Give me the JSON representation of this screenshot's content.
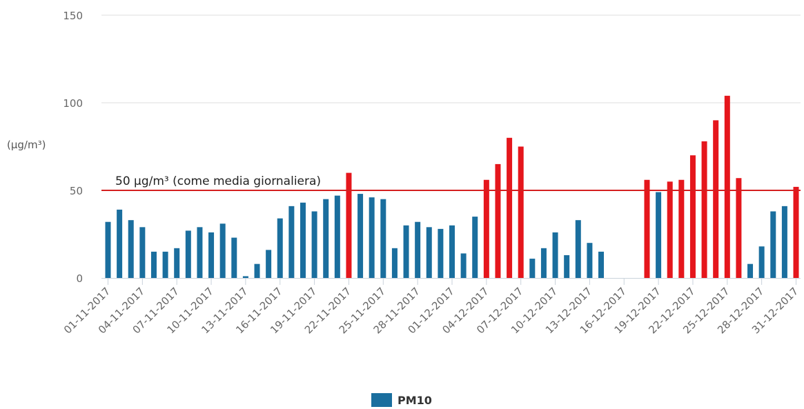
{
  "chart_data": {
    "type": "bar",
    "ylabel": "(µg/m³)",
    "ylim": [
      0,
      150
    ],
    "yticks": [
      0,
      50,
      100,
      150
    ],
    "grid": true,
    "legend": {
      "position": "bottom",
      "label": "PM10"
    },
    "reference_line": {
      "value": 50,
      "label": "50 µg/m³ (come media giornaliera)"
    },
    "colors": {
      "normal": "#1a6e9e",
      "exceed": "#e5161c",
      "refline": "#d41f1f",
      "grid": "#dddddd"
    },
    "categories": [
      "01-11-2017",
      "02-11-2017",
      "03-11-2017",
      "04-11-2017",
      "05-11-2017",
      "06-11-2017",
      "07-11-2017",
      "08-11-2017",
      "09-11-2017",
      "10-11-2017",
      "11-11-2017",
      "12-11-2017",
      "13-11-2017",
      "14-11-2017",
      "15-11-2017",
      "16-11-2017",
      "17-11-2017",
      "18-11-2017",
      "19-11-2017",
      "20-11-2017",
      "21-11-2017",
      "22-11-2017",
      "23-11-2017",
      "24-11-2017",
      "25-11-2017",
      "26-11-2017",
      "27-11-2017",
      "28-11-2017",
      "29-11-2017",
      "30-11-2017",
      "01-12-2017",
      "02-12-2017",
      "03-12-2017",
      "04-12-2017",
      "05-12-2017",
      "06-12-2017",
      "07-12-2017",
      "08-12-2017",
      "09-12-2017",
      "10-12-2017",
      "11-12-2017",
      "12-12-2017",
      "13-12-2017",
      "14-12-2017",
      "15-12-2017",
      "16-12-2017",
      "17-12-2017",
      "18-12-2017",
      "19-12-2017",
      "20-12-2017",
      "21-12-2017",
      "22-12-2017",
      "23-12-2017",
      "24-12-2017",
      "25-12-2017",
      "26-12-2017",
      "27-12-2017",
      "28-12-2017",
      "29-12-2017",
      "30-12-2017",
      "31-12-2017"
    ],
    "tick_labels": [
      "01-11-2017",
      "04-11-2017",
      "07-11-2017",
      "10-11-2017",
      "13-11-2017",
      "16-11-2017",
      "19-11-2017",
      "22-11-2017",
      "25-11-2017",
      "28-11-2017",
      "01-12-2017",
      "04-12-2017",
      "07-12-2017",
      "10-12-2017",
      "13-12-2017",
      "16-12-2017",
      "19-12-2017",
      "22-12-2017",
      "25-12-2017",
      "28-12-2017",
      "31-12-2017"
    ],
    "series": [
      {
        "name": "PM10",
        "values": [
          32,
          39,
          33,
          29,
          15,
          15,
          17,
          27,
          29,
          26,
          31,
          23,
          1,
          8,
          16,
          34,
          41,
          43,
          38,
          45,
          47,
          60,
          48,
          46,
          45,
          17,
          30,
          32,
          29,
          28,
          30,
          14,
          35,
          56,
          65,
          80,
          75,
          11,
          17,
          26,
          13,
          33,
          20,
          15,
          null,
          null,
          null,
          56,
          49,
          55,
          56,
          70,
          78,
          90,
          104,
          57,
          8,
          18,
          38,
          41,
          52
        ]
      }
    ]
  }
}
